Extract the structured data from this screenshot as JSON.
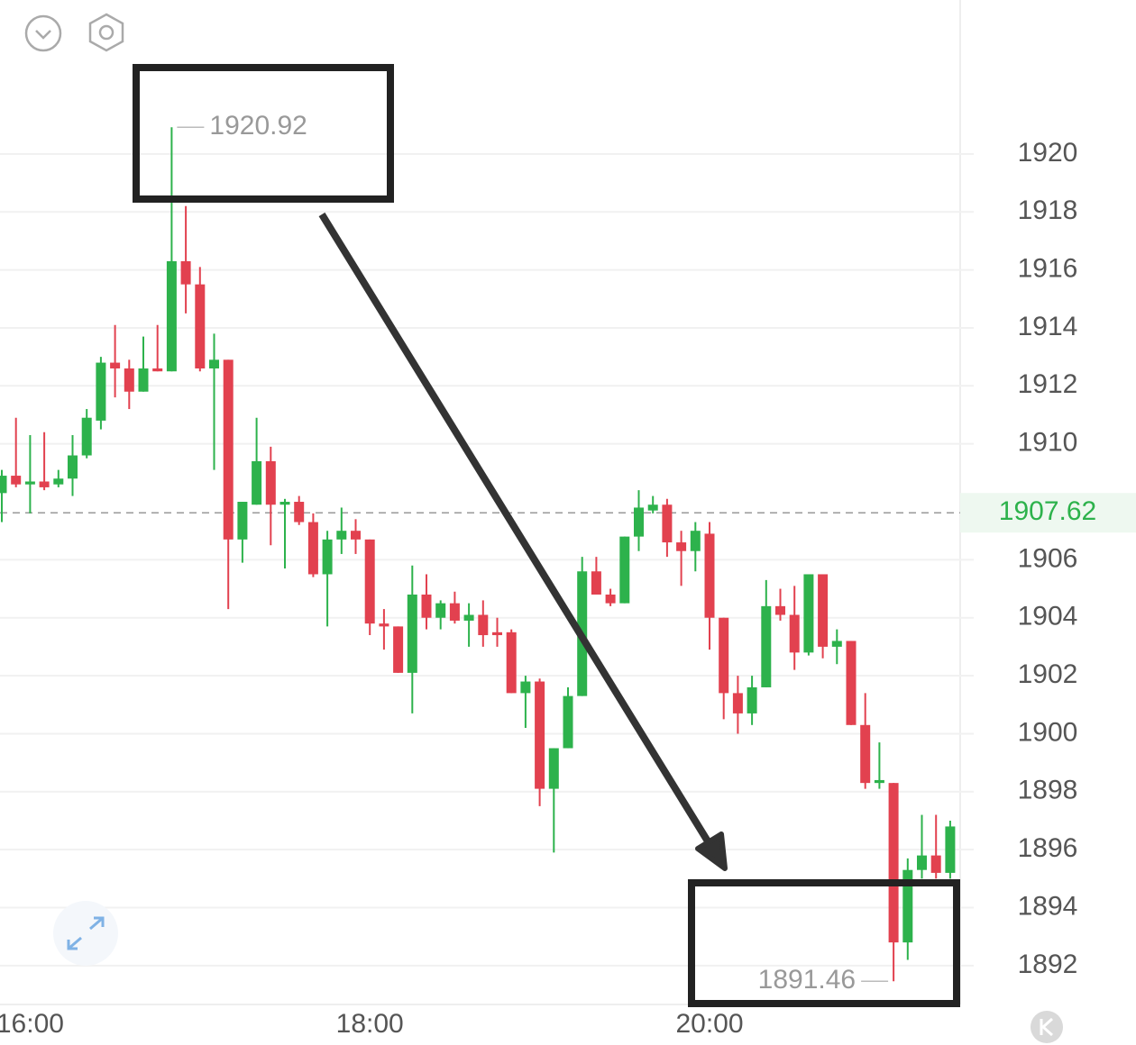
{
  "chart_data": {
    "type": "candlestick",
    "categories": [
      null,
      null,
      "16:00",
      null,
      null,
      null,
      null,
      null,
      null,
      null,
      null,
      null,
      null,
      null,
      null,
      null,
      null,
      null,
      null,
      null,
      null,
      null,
      null,
      null,
      null,
      null,
      "18:00",
      null,
      null,
      null,
      null,
      null,
      null,
      null,
      null,
      null,
      null,
      null,
      null,
      null,
      null,
      null,
      null,
      null,
      null,
      null,
      null,
      null,
      null,
      null,
      "20:00",
      null,
      null,
      null,
      null,
      null,
      null,
      null,
      null,
      null,
      null,
      null,
      null,
      null,
      null,
      null,
      null,
      null
    ],
    "open": [
      1908.3,
      1908.9,
      1908.6,
      1908.7,
      1908.6,
      1908.8,
      1909.6,
      1910.8,
      1912.8,
      1912.6,
      1911.8,
      1912.6,
      1912.5,
      1916.3,
      1915.5,
      1912.6,
      1912.9,
      1906.7,
      1907.9,
      1909.4,
      1907.9,
      1908.0,
      1907.3,
      1905.5,
      1906.7,
      1907.0,
      1906.7,
      1903.8,
      1903.7,
      1902.1,
      1904.8,
      1904.0,
      1904.5,
      1903.9,
      1904.1,
      1903.5,
      1903.5,
      1901.4,
      1901.8,
      1898.1,
      1899.5,
      1901.3,
      1905.6,
      1904.8,
      1904.5,
      1906.8,
      1907.7,
      1907.9,
      1906.6,
      1906.3,
      1906.9,
      1904.0,
      1901.4,
      1900.7,
      1901.6,
      1904.4,
      1904.1,
      1902.8,
      1905.5,
      1903.0,
      1903.2,
      1900.3,
      1898.3,
      1898.3,
      1892.8,
      1895.3,
      1895.8,
      1895.2
    ],
    "high": [
      1909.1,
      1910.9,
      1910.3,
      1910.4,
      1909.1,
      1910.3,
      1911.2,
      1913.0,
      1914.1,
      1912.9,
      1913.7,
      1914.1,
      1920.92,
      1918.2,
      1916.1,
      1913.8,
      1912.9,
      1908.0,
      1910.9,
      1909.9,
      1908.1,
      1908.2,
      1907.6,
      1907.0,
      1907.8,
      1907.4,
      1906.7,
      1904.3,
      1903.7,
      1905.8,
      1905.5,
      1904.6,
      1904.9,
      1904.5,
      1904.6,
      1904.0,
      1903.6,
      1902.0,
      1901.9,
      1899.5,
      1901.6,
      1906.1,
      1906.1,
      1905.0,
      1906.8,
      1908.4,
      1908.2,
      1908.1,
      1907.0,
      1907.3,
      1907.3,
      1904.0,
      1902.0,
      1902.0,
      1905.3,
      1905.0,
      1905.1,
      1905.5,
      1905.5,
      1903.6,
      1903.2,
      1901.4,
      1899.7,
      1898.3,
      1895.7,
      1897.2,
      1897.2,
      1897.0
    ],
    "low": [
      1907.3,
      1908.5,
      1907.6,
      1908.4,
      1908.5,
      1908.2,
      1909.5,
      1910.5,
      1911.6,
      1911.2,
      1911.8,
      1912.5,
      1912.5,
      1914.5,
      1912.5,
      1909.1,
      1904.3,
      1905.9,
      1907.9,
      1906.5,
      1905.7,
      1907.2,
      1905.4,
      1903.7,
      1906.2,
      1906.2,
      1903.4,
      1902.9,
      1902.1,
      1900.7,
      1903.6,
      1903.6,
      1903.8,
      1903.0,
      1903.0,
      1903.0,
      1901.4,
      1900.2,
      1897.5,
      1895.9,
      1899.5,
      1901.3,
      1904.8,
      1904.4,
      1904.5,
      1906.3,
      1907.6,
      1906.1,
      1905.1,
      1905.6,
      1902.9,
      1900.5,
      1900.0,
      1900.3,
      1901.6,
      1903.9,
      1902.2,
      1902.7,
      1902.6,
      1902.4,
      1900.3,
      1898.1,
      1898.1,
      1891.46,
      1892.2,
      1895.0,
      1895.0,
      1895.0
    ],
    "close": [
      1908.9,
      1908.6,
      1908.7,
      1908.5,
      1908.8,
      1909.6,
      1910.9,
      1912.8,
      1912.6,
      1911.8,
      1912.6,
      1912.5,
      1916.3,
      1915.5,
      1912.6,
      1912.9,
      1906.7,
      1908.0,
      1909.4,
      1907.9,
      1908.0,
      1907.3,
      1905.5,
      1906.7,
      1907.0,
      1906.7,
      1903.8,
      1903.7,
      1902.1,
      1904.8,
      1904.0,
      1904.5,
      1903.9,
      1904.1,
      1903.4,
      1903.4,
      1901.4,
      1901.8,
      1898.1,
      1899.5,
      1901.3,
      1905.6,
      1904.8,
      1904.5,
      1906.8,
      1907.8,
      1907.9,
      1906.6,
      1906.3,
      1907.0,
      1904.0,
      1901.4,
      1900.7,
      1901.6,
      1904.4,
      1904.1,
      1902.8,
      1905.5,
      1903.0,
      1903.2,
      1900.3,
      1898.3,
      1898.4,
      1892.8,
      1895.3,
      1895.8,
      1895.2,
      1896.8
    ],
    "up_color": "#2db24c",
    "down_color": "#e2414f",
    "price_line": 1907.62,
    "ylim": [
      1890.66,
      1925.31
    ],
    "yticks": [
      1892,
      1894,
      1896,
      1898,
      1900,
      1902,
      1904,
      1906,
      1910,
      1912,
      1914,
      1916,
      1918,
      1920
    ],
    "grid": true
  }
}
